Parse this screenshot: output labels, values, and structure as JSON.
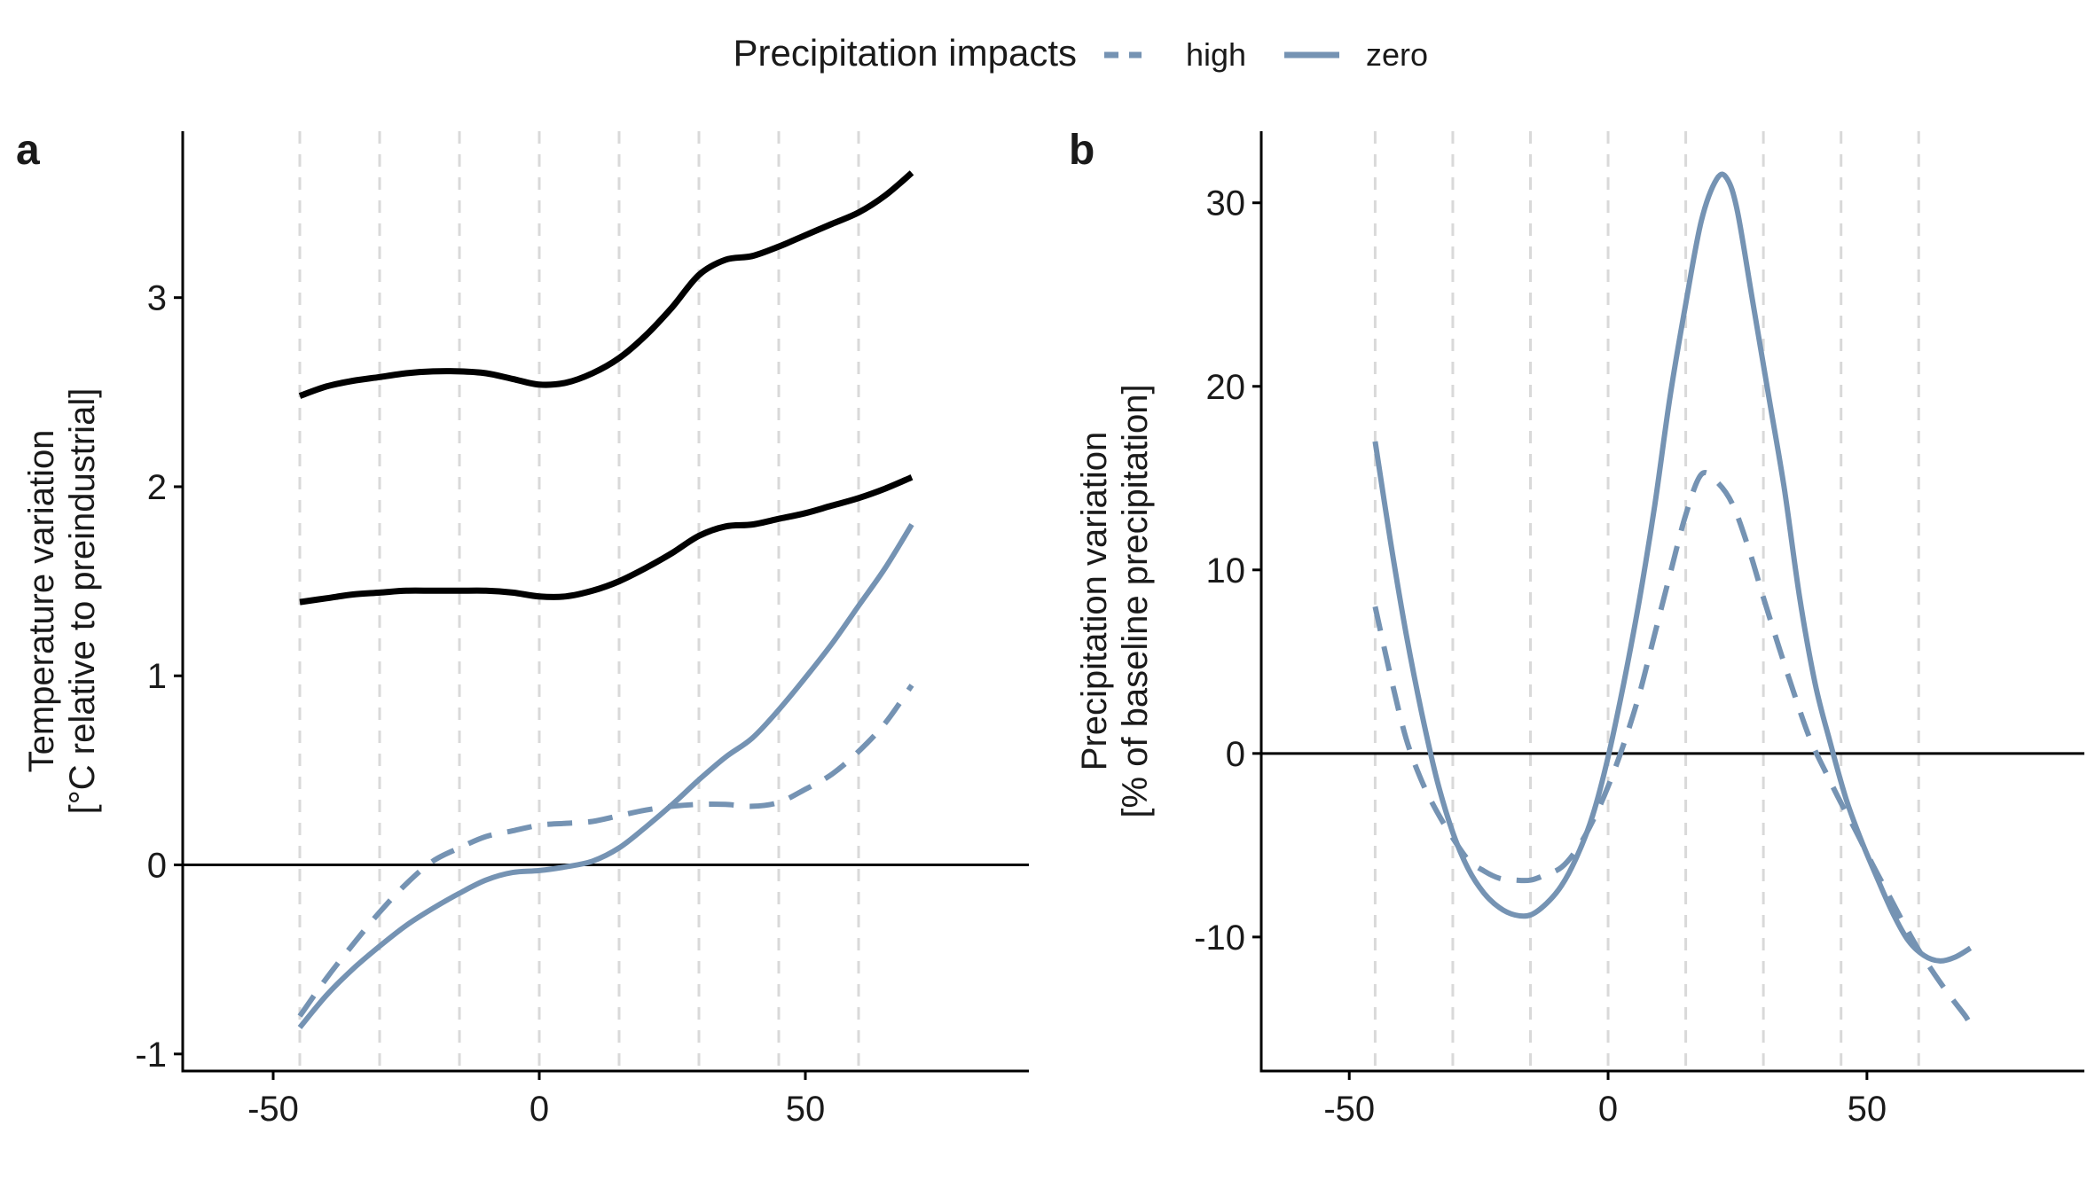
{
  "legend": {
    "title": "Precipitation impacts",
    "items": [
      {
        "label": "high",
        "style": "dashed"
      },
      {
        "label": "zero",
        "style": "solid"
      }
    ]
  },
  "colors": {
    "series": "#7593b3",
    "black": "#000000",
    "grid": "#d9d9d9"
  },
  "chart_data": [
    {
      "panel_label": "a",
      "type": "line",
      "xlabel": "",
      "ylabel_lines": [
        "Temperature variation",
        "[°C relative to preindustrial]"
      ],
      "xlim": [
        -67,
        92
      ],
      "ylim": [
        -1.09,
        3.88
      ],
      "xticks": [
        -50,
        0,
        50
      ],
      "yticks": [
        -1,
        0,
        1,
        2,
        3
      ],
      "vgrid_x": [
        -45,
        -30,
        -15,
        0,
        15,
        30,
        45,
        60
      ],
      "hline_y": 0,
      "series": [
        {
          "style": "solid",
          "color": "black",
          "x": [
            -45,
            -40,
            -35,
            -30,
            -25,
            -20,
            -15,
            -10,
            -5,
            0,
            5,
            10,
            15,
            20,
            25,
            30,
            35,
            40,
            45,
            50,
            55,
            60,
            65,
            70
          ],
          "y": [
            2.48,
            2.53,
            2.56,
            2.58,
            2.6,
            2.61,
            2.61,
            2.6,
            2.57,
            2.54,
            2.55,
            2.6,
            2.68,
            2.8,
            2.95,
            3.12,
            3.2,
            3.22,
            3.27,
            3.33,
            3.39,
            3.45,
            3.54,
            3.66
          ]
        },
        {
          "style": "solid",
          "color": "black",
          "x": [
            -45,
            -40,
            -35,
            -30,
            -25,
            -20,
            -15,
            -10,
            -5,
            0,
            5,
            10,
            15,
            20,
            25,
            30,
            35,
            40,
            45,
            50,
            55,
            60,
            65,
            70
          ],
          "y": [
            1.39,
            1.41,
            1.43,
            1.44,
            1.45,
            1.45,
            1.45,
            1.45,
            1.44,
            1.42,
            1.42,
            1.45,
            1.5,
            1.57,
            1.65,
            1.74,
            1.79,
            1.8,
            1.83,
            1.86,
            1.9,
            1.94,
            1.99,
            2.05
          ]
        },
        {
          "name": "zero",
          "style": "solid",
          "color": "series",
          "x": [
            -45,
            -40,
            -35,
            -30,
            -25,
            -20,
            -15,
            -10,
            -5,
            0,
            5,
            10,
            15,
            20,
            25,
            30,
            35,
            40,
            45,
            50,
            55,
            60,
            65,
            70
          ],
          "y": [
            -0.86,
            -0.69,
            -0.55,
            -0.43,
            -0.32,
            -0.23,
            -0.15,
            -0.08,
            -0.04,
            -0.03,
            -0.01,
            0.02,
            0.09,
            0.2,
            0.32,
            0.45,
            0.57,
            0.67,
            0.82,
            0.99,
            1.17,
            1.37,
            1.57,
            1.8
          ]
        },
        {
          "name": "high",
          "style": "dashed",
          "color": "series",
          "x": [
            -45,
            -40,
            -35,
            -30,
            -25,
            -20,
            -15,
            -10,
            -5,
            0,
            5,
            10,
            15,
            20,
            25,
            30,
            35,
            40,
            45,
            50,
            55,
            60,
            65,
            70
          ],
          "y": [
            -0.8,
            -0.6,
            -0.42,
            -0.25,
            -0.1,
            0.02,
            0.09,
            0.15,
            0.18,
            0.21,
            0.22,
            0.23,
            0.26,
            0.29,
            0.31,
            0.32,
            0.32,
            0.31,
            0.33,
            0.4,
            0.48,
            0.6,
            0.75,
            0.95
          ]
        }
      ]
    },
    {
      "panel_label": "b",
      "type": "line",
      "xlabel": "",
      "ylabel_lines": [
        "Precipitation variation",
        "[% of baseline precipitation]"
      ],
      "xlim": [
        -67,
        92
      ],
      "ylim": [
        -17.3,
        33.9
      ],
      "xticks": [
        -50,
        0,
        50
      ],
      "yticks": [
        -10,
        0,
        10,
        20,
        30
      ],
      "vgrid_x": [
        -45,
        -30,
        -15,
        0,
        15,
        30,
        45,
        60
      ],
      "hline_y": 0,
      "series": [
        {
          "name": "zero",
          "style": "solid",
          "color": "series",
          "x": [
            -45,
            -42,
            -39,
            -36,
            -33,
            -30,
            -27,
            -24,
            -21,
            -18,
            -15,
            -12,
            -9,
            -6,
            -3,
            0,
            3,
            6,
            9,
            12,
            15,
            18,
            21,
            23,
            25,
            28,
            31,
            34,
            37,
            40,
            43,
            46,
            49,
            52,
            55,
            58,
            61,
            64,
            67,
            70
          ],
          "y": [
            17,
            11.5,
            6.5,
            2.2,
            -1.5,
            -4.3,
            -6.3,
            -7.6,
            -8.4,
            -8.8,
            -8.8,
            -8.2,
            -7.2,
            -5.6,
            -3.4,
            -0.2,
            3.8,
            8.3,
            13.5,
            19.5,
            24.5,
            29,
            31.3,
            31.3,
            29.5,
            24.5,
            19.5,
            14.5,
            8.5,
            3.8,
            0.5,
            -2.5,
            -4.8,
            -6.8,
            -8.7,
            -10.2,
            -11,
            -11.3,
            -11.1,
            -10.6
          ]
        },
        {
          "name": "high",
          "style": "dashed",
          "color": "series",
          "x": [
            -45,
            -42,
            -39,
            -36,
            -33,
            -30,
            -27,
            -24,
            -21,
            -18,
            -15,
            -12,
            -9,
            -6,
            -3,
            0,
            3,
            6,
            9,
            12,
            15,
            18,
            21,
            24,
            27,
            30,
            33,
            36,
            39,
            42,
            45,
            48,
            51,
            54,
            57,
            60,
            63,
            66,
            69,
            70
          ],
          "y": [
            8,
            4.2,
            0.8,
            -1.5,
            -3.2,
            -4.6,
            -5.8,
            -6.4,
            -6.8,
            -6.9,
            -6.9,
            -6.6,
            -6.2,
            -5.2,
            -3.7,
            -1.8,
            0.5,
            3.2,
            6.5,
            9.8,
            13,
            15.2,
            14.8,
            13.6,
            11.3,
            8.5,
            5.8,
            3.2,
            0.8,
            -1,
            -2.7,
            -4.3,
            -6,
            -7.6,
            -9.2,
            -10.7,
            -12,
            -13.2,
            -14.3,
            -14.8
          ]
        }
      ]
    }
  ]
}
